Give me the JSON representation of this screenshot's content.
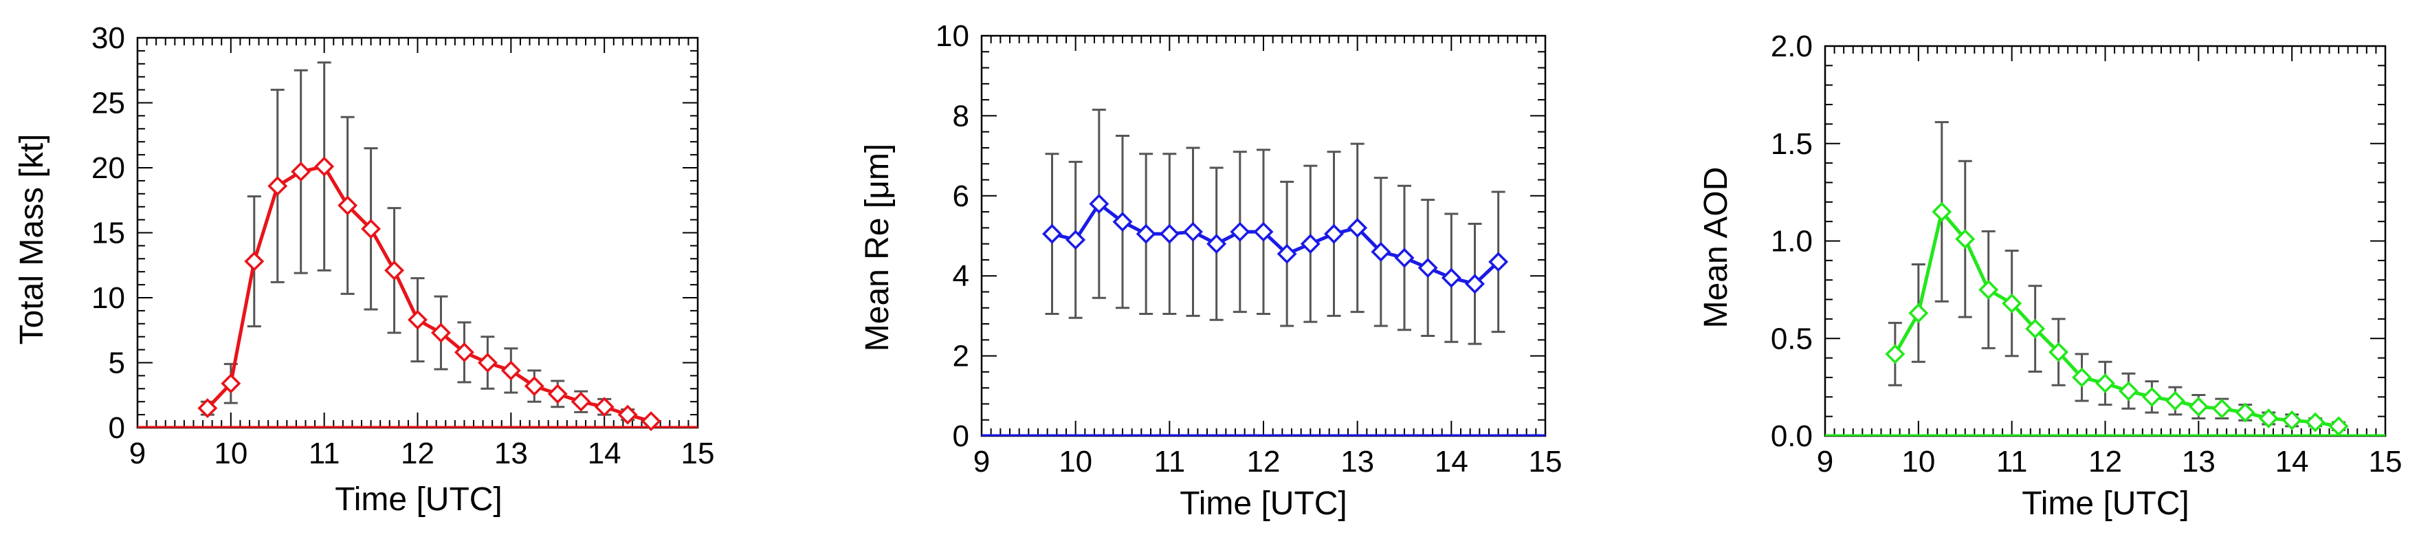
{
  "chart_data": [
    {
      "type": "line",
      "title": "",
      "xlabel": "Time [UTC]",
      "ylabel": "Total Mass [kt]",
      "xlim": [
        9,
        15
      ],
      "ylim": [
        0,
        30
      ],
      "xticks": [
        9,
        10,
        11,
        12,
        13,
        14,
        15
      ],
      "yticks": [
        0,
        5,
        10,
        15,
        20,
        25,
        30
      ],
      "ytick_labels": [
        "0",
        "5",
        "10",
        "15",
        "20",
        "25",
        "30"
      ],
      "grid": false,
      "marker": "diamond",
      "color": "#e8141a",
      "series": [
        {
          "x": [
            9.75,
            10.0,
            10.25,
            10.5,
            10.75,
            11.0,
            11.25,
            11.5,
            11.75,
            12.0,
            12.25,
            12.5,
            12.75,
            13.0,
            13.25,
            13.5,
            13.75,
            14.0,
            14.25,
            14.5
          ],
          "y": [
            1.5,
            3.4,
            12.8,
            18.6,
            19.7,
            20.1,
            17.1,
            15.3,
            12.1,
            8.3,
            7.3,
            5.8,
            5.0,
            4.4,
            3.2,
            2.6,
            2.0,
            1.6,
            1.0,
            0.5
          ],
          "err": [
            0.5,
            1.5,
            5.0,
            7.4,
            7.8,
            8.0,
            6.8,
            6.2,
            4.8,
            3.2,
            2.8,
            2.3,
            2.0,
            1.7,
            1.2,
            1.0,
            0.8,
            0.6,
            0.4,
            0.2
          ]
        }
      ]
    },
    {
      "type": "line",
      "title": "",
      "xlabel": "Time [UTC]",
      "ylabel": "Mean Re [μm]",
      "xlim": [
        9,
        15
      ],
      "ylim": [
        0,
        10
      ],
      "xticks": [
        9,
        10,
        11,
        12,
        13,
        14,
        15
      ],
      "yticks": [
        0,
        2,
        4,
        6,
        8,
        10
      ],
      "ytick_labels": [
        "0",
        "2",
        "4",
        "6",
        "8",
        "10"
      ],
      "grid": false,
      "marker": "diamond",
      "color": "#1a1ae6",
      "series": [
        {
          "x": [
            9.75,
            10.0,
            10.25,
            10.5,
            10.75,
            11.0,
            11.25,
            11.5,
            11.75,
            12.0,
            12.25,
            12.5,
            12.75,
            13.0,
            13.25,
            13.5,
            13.75,
            14.0,
            14.25,
            14.5
          ],
          "y": [
            5.05,
            4.9,
            5.8,
            5.35,
            5.05,
            5.05,
            5.1,
            4.8,
            5.1,
            5.1,
            4.55,
            4.8,
            5.05,
            5.2,
            4.6,
            4.45,
            4.2,
            3.95,
            3.8,
            4.35
          ],
          "err": [
            2.0,
            1.95,
            2.35,
            2.15,
            2.0,
            2.0,
            2.1,
            1.9,
            2.0,
            2.05,
            1.8,
            1.95,
            2.05,
            2.1,
            1.85,
            1.8,
            1.7,
            1.6,
            1.5,
            1.75
          ]
        }
      ]
    },
    {
      "type": "line",
      "title": "",
      "xlabel": "Time [UTC]",
      "ylabel": "Mean AOD",
      "xlim": [
        9,
        15
      ],
      "ylim": [
        0,
        2.0
      ],
      "xticks": [
        9,
        10,
        11,
        12,
        13,
        14,
        15
      ],
      "yticks": [
        0,
        0.5,
        1.0,
        1.5,
        2.0
      ],
      "ytick_labels": [
        "0.0",
        "0.5",
        "1.0",
        "1.5",
        "2.0"
      ],
      "grid": false,
      "marker": "diamond",
      "color": "#22e81a",
      "series": [
        {
          "x": [
            9.75,
            10.0,
            10.25,
            10.5,
            10.75,
            11.0,
            11.25,
            11.5,
            11.75,
            12.0,
            12.25,
            12.5,
            12.75,
            13.0,
            13.25,
            13.5,
            13.75,
            14.0,
            14.25,
            14.5
          ],
          "y": [
            0.42,
            0.63,
            1.15,
            1.01,
            0.75,
            0.68,
            0.55,
            0.43,
            0.3,
            0.27,
            0.23,
            0.2,
            0.18,
            0.15,
            0.14,
            0.12,
            0.09,
            0.08,
            0.07,
            0.05
          ],
          "err": [
            0.16,
            0.25,
            0.46,
            0.4,
            0.3,
            0.27,
            0.22,
            0.17,
            0.12,
            0.11,
            0.09,
            0.08,
            0.07,
            0.06,
            0.05,
            0.04,
            0.03,
            0.03,
            0.02,
            0.02
          ]
        }
      ]
    }
  ]
}
